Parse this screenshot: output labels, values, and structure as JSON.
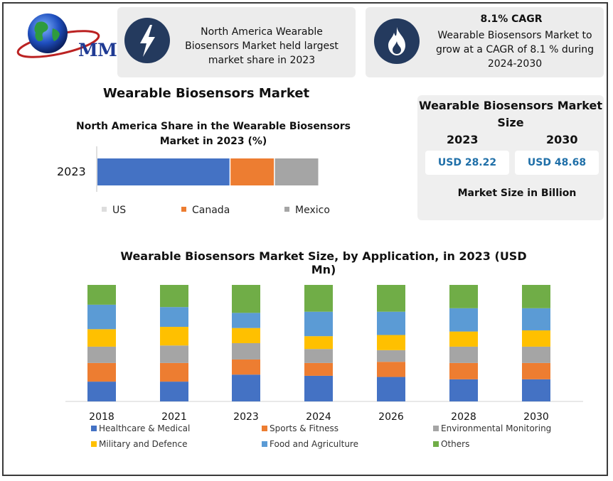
{
  "logo": {
    "text": "MMR"
  },
  "card1": {
    "icon": "lightning-bolt-icon",
    "text": "North America Wearable Biosensors Market held largest market share in 2023"
  },
  "card2": {
    "icon": "flame-icon",
    "title": "8.1% CAGR",
    "text": "Wearable Biosensors Market to grow at a CAGR of 8.1 % during 2024-2030"
  },
  "main_title": "Wearable Biosensors Market",
  "market_size": {
    "title": "Wearable Biosensors Market Size",
    "year1": "2023",
    "value1": "USD 28.22",
    "year2": "2030",
    "value2": "USD 48.68",
    "footer": "Market Size in Billion"
  },
  "colors": {
    "blue": "#4472c4",
    "orange": "#ed7d31",
    "gray": "#a5a5a5",
    "yellow": "#ffc000",
    "lightblue": "#5b9bd5",
    "green": "#70ad47",
    "icon_circle": "#243a5e"
  },
  "chart_data": [
    {
      "type": "bar",
      "orientation": "horizontal-stacked",
      "title": "North America Share in the Wearable  Biosensors Market in 2023 (%)",
      "categories": [
        "2023"
      ],
      "series": [
        {
          "name": "US",
          "values": [
            60
          ]
        },
        {
          "name": "Canada",
          "values": [
            20
          ]
        },
        {
          "name": "Mexico",
          "values": [
            20
          ]
        }
      ],
      "legend": "bottom"
    },
    {
      "type": "bar",
      "orientation": "vertical-stacked",
      "title": "Wearable Biosensors Market Size, by Application, in 2023 (USD Mn)",
      "categories": [
        "2018",
        "2021",
        "2023",
        "2024",
        "2026",
        "2028",
        "2030"
      ],
      "series": [
        {
          "name": "Healthcare & Medical",
          "values": [
            17,
            17,
            23,
            22,
            21,
            19,
            19
          ]
        },
        {
          "name": "Sports & Fitness",
          "values": [
            16,
            16,
            13,
            11,
            13,
            14,
            14
          ]
        },
        {
          "name": "Environmental Monitoring",
          "values": [
            14,
            15,
            14,
            12,
            10,
            14,
            14
          ]
        },
        {
          "name": "Military and Defence",
          "values": [
            15,
            16,
            13,
            11,
            13,
            13,
            14
          ]
        },
        {
          "name": "Food and Agriculture",
          "values": [
            21,
            17,
            13,
            21,
            20,
            20,
            19
          ]
        },
        {
          "name": "Others",
          "values": [
            17,
            19,
            24,
            23,
            23,
            20,
            20
          ]
        }
      ],
      "legend": "bottom"
    }
  ]
}
